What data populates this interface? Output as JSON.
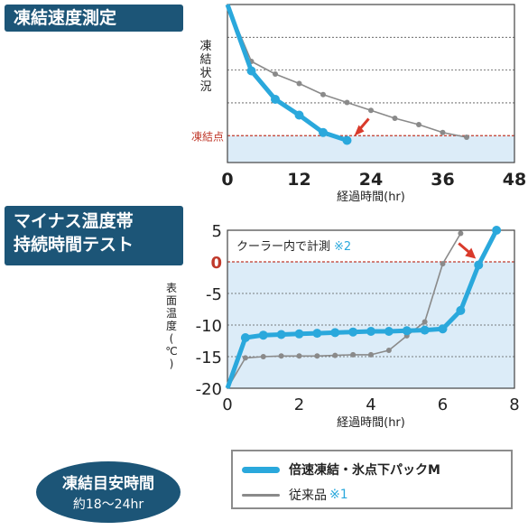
{
  "titles": {
    "chart1": "凍結速度測定",
    "chart2_line1": "マイナス温度帯",
    "chart2_line2": "持続時間テスト"
  },
  "badge": {
    "line1": "凍結目安時間",
    "line2": "約18〜24hr"
  },
  "legend": {
    "series_a": "倍速凍結・氷点下パックM",
    "series_b": "従来品",
    "series_b_note": "※1"
  },
  "colors": {
    "series_a": "#2aa8dc",
    "series_b": "#8a8a8a",
    "accent": "#1c5577",
    "ref_line": "#c0392b",
    "shade": "#dcecf8",
    "arrow": "#d93a2b"
  },
  "chart_data": [
    {
      "type": "line",
      "xlabel": "経過時間(hr)",
      "ylabel": "凍結状況",
      "xlim": [
        0,
        48
      ],
      "xticks": [
        0,
        12,
        24,
        36,
        48
      ],
      "reference_label": "凍結点",
      "series": [
        {
          "name": "倍速凍結・氷点下パックM",
          "x": [
            0,
            4,
            8,
            12,
            16,
            20
          ],
          "y": [
            100,
            58,
            40,
            30,
            19,
            14
          ]
        },
        {
          "name": "従来品",
          "x": [
            0,
            4,
            8,
            12,
            16,
            20,
            24,
            28,
            32,
            36,
            40
          ],
          "y": [
            100,
            64,
            56,
            50,
            43,
            38,
            33,
            28,
            24,
            19,
            16
          ]
        }
      ],
      "shaded_below_reference": true,
      "frozen_level": 17
    },
    {
      "type": "line",
      "xlabel": "経過時間(hr)",
      "ylabel": "表面温度(℃)",
      "xlim": [
        0,
        8
      ],
      "ylim": [
        -20,
        5
      ],
      "xticks": [
        0,
        2,
        4,
        6,
        8
      ],
      "yticks": [
        5,
        0,
        -5,
        -10,
        -15,
        -20
      ],
      "annotation": "クーラー内で計測",
      "annotation_note": "※2",
      "reference_y": 0,
      "series": [
        {
          "name": "倍速凍結・氷点下パックM",
          "x": [
            0,
            0.5,
            1,
            1.5,
            2,
            2.5,
            3,
            3.5,
            4,
            4.5,
            5,
            5.5,
            6,
            6.5,
            7,
            7.5
          ],
          "y": [
            -20,
            -12,
            -11.6,
            -11.5,
            -11.4,
            -11.3,
            -11.2,
            -11.1,
            -11,
            -11,
            -10.9,
            -10.8,
            -10.6,
            -7.7,
            -0.5,
            5
          ]
        },
        {
          "name": "従来品",
          "x": [
            0,
            0.5,
            1,
            1.5,
            2,
            2.5,
            3,
            3.5,
            4,
            4.5,
            5,
            5.5,
            6,
            6.5
          ],
          "y": [
            -20,
            -15.2,
            -15,
            -14.9,
            -14.9,
            -14.9,
            -14.8,
            -14.7,
            -14.7,
            -14,
            -11.7,
            -9.5,
            -0.3,
            4.5
          ]
        }
      ]
    }
  ]
}
